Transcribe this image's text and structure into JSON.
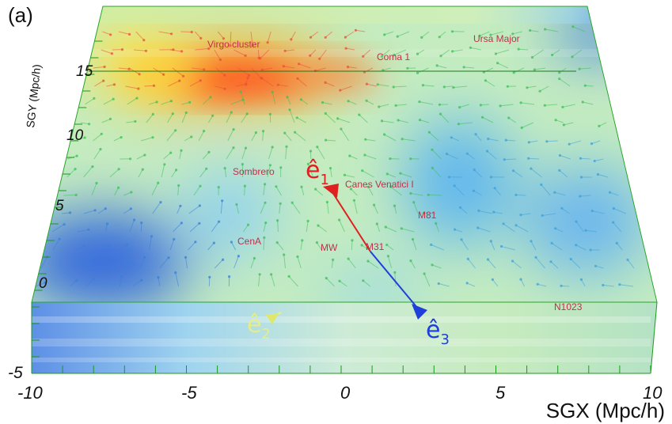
{
  "panel_label": "(a)",
  "axes": {
    "x_title": "SGX (Mpc/h)",
    "y_title": "SGY (Mpc/h)",
    "x_ticks": [
      "-10",
      "-5",
      "0",
      "5",
      "10"
    ],
    "y_ticks": [
      "-5",
      "0",
      "5",
      "10",
      "15"
    ]
  },
  "galaxies": [
    {
      "id": "virgo",
      "label": "Virgo cluster"
    },
    {
      "id": "coma1",
      "label": "Coma 1"
    },
    {
      "id": "ursa",
      "label": "Ursa Major"
    },
    {
      "id": "sombrero",
      "label": "Sombrero"
    },
    {
      "id": "canes",
      "label": "Canes Venatici I"
    },
    {
      "id": "m81",
      "label": "M81"
    },
    {
      "id": "cena",
      "label": "CenA"
    },
    {
      "id": "mw",
      "label": "MW"
    },
    {
      "id": "m31",
      "label": "M31"
    },
    {
      "id": "n1023",
      "label": "N1023"
    }
  ],
  "vectors": [
    {
      "id": "e1",
      "symbol": "ê",
      "sub": "1",
      "color": "#e02020"
    },
    {
      "id": "e3",
      "symbol": "ê",
      "sub": "3",
      "color": "#1f3fd8"
    },
    {
      "id": "e2",
      "symbol": "ê",
      "sub": "2",
      "color": "#f2f080"
    }
  ],
  "colors": {
    "high_density": "#ff3a1a",
    "mid_density": "#f0e640",
    "low_density": "#2f6fe0",
    "box_edge": "#1aa01a",
    "e1_arrow": "#e02020",
    "e3_arrow": "#1f3fd8"
  }
}
